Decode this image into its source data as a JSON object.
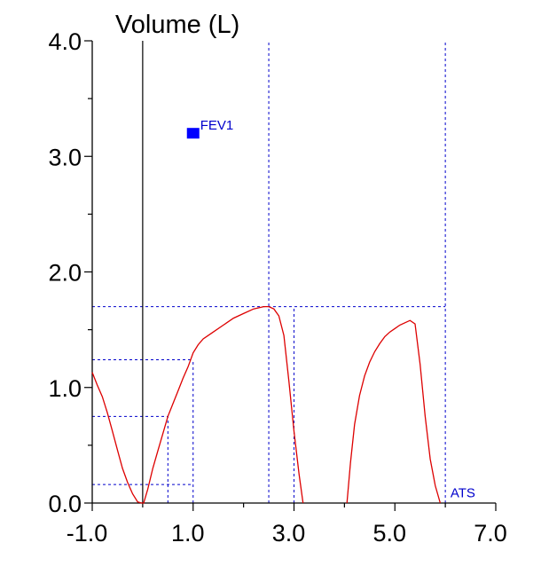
{
  "chart_data": {
    "type": "line",
    "title": "Volume (L)",
    "xlabel": "",
    "ylabel": "Volume (L)",
    "xlim": [
      -1.0,
      7.0
    ],
    "ylim": [
      0.0,
      4.0
    ],
    "x_ticks": [
      -1.0,
      1.0,
      3.0,
      5.0,
      7.0
    ],
    "x_tick_labels": [
      "-1.0",
      "1.0",
      "3.0",
      "5.0",
      "7.0"
    ],
    "x_minor_ticks": [
      0.0,
      2.0,
      4.0,
      6.0
    ],
    "y_ticks": [
      0.0,
      1.0,
      2.0,
      3.0,
      4.0
    ],
    "y_tick_labels": [
      "0.0",
      "1.0",
      "2.0",
      "3.0",
      "4.0"
    ],
    "y_minor_ticks": [
      0.5,
      1.5,
      2.5,
      3.5
    ],
    "grid": false,
    "colors": {
      "curve": "#dd0000",
      "guides": "#0000cc",
      "marker": "#0000ff",
      "axes": "#000000"
    },
    "series": [
      {
        "points": [
          [
            -1.0,
            1.13
          ],
          [
            -0.9,
            1.02
          ],
          [
            -0.8,
            0.92
          ],
          [
            -0.7,
            0.78
          ],
          [
            -0.6,
            0.62
          ],
          [
            -0.5,
            0.46
          ],
          [
            -0.4,
            0.3
          ],
          [
            -0.3,
            0.18
          ],
          [
            -0.2,
            0.08
          ],
          [
            -0.1,
            0.01
          ],
          [
            -0.02,
            0.0
          ],
          [
            0.02,
            0.0
          ],
          [
            0.1,
            0.12
          ],
          [
            0.2,
            0.3
          ],
          [
            0.3,
            0.45
          ],
          [
            0.4,
            0.6
          ],
          [
            0.5,
            0.75
          ],
          [
            0.6,
            0.86
          ],
          [
            0.7,
            0.97
          ],
          [
            0.8,
            1.08
          ],
          [
            0.9,
            1.18
          ],
          [
            1.0,
            1.3
          ],
          [
            1.1,
            1.37
          ],
          [
            1.2,
            1.42
          ],
          [
            1.4,
            1.48
          ],
          [
            1.6,
            1.54
          ],
          [
            1.8,
            1.6
          ],
          [
            2.0,
            1.64
          ],
          [
            2.2,
            1.68
          ],
          [
            2.4,
            1.7
          ],
          [
            2.5,
            1.7
          ],
          [
            2.6,
            1.68
          ],
          [
            2.7,
            1.62
          ],
          [
            2.8,
            1.45
          ],
          [
            2.9,
            1.05
          ],
          [
            3.0,
            0.62
          ],
          [
            3.1,
            0.25
          ],
          [
            3.18,
            0.0
          ]
        ]
      },
      {
        "points": [
          [
            4.05,
            0.0
          ],
          [
            4.12,
            0.35
          ],
          [
            4.2,
            0.68
          ],
          [
            4.3,
            0.93
          ],
          [
            4.4,
            1.1
          ],
          [
            4.5,
            1.22
          ],
          [
            4.6,
            1.31
          ],
          [
            4.7,
            1.38
          ],
          [
            4.8,
            1.44
          ],
          [
            4.9,
            1.48
          ],
          [
            5.0,
            1.51
          ],
          [
            5.1,
            1.54
          ],
          [
            5.2,
            1.56
          ],
          [
            5.3,
            1.58
          ],
          [
            5.4,
            1.55
          ],
          [
            5.5,
            1.2
          ],
          [
            5.6,
            0.75
          ],
          [
            5.7,
            0.38
          ],
          [
            5.8,
            0.15
          ],
          [
            5.9,
            0.0
          ]
        ]
      }
    ],
    "guide_lines": [
      {
        "x1": 2.5,
        "y1": 0.0,
        "x2": 2.5,
        "y2": 4.0
      },
      {
        "x1": 6.0,
        "y1": 0.0,
        "x2": 6.0,
        "y2": 4.0
      },
      {
        "x1": -1.0,
        "y1": 1.7,
        "x2": 6.0,
        "y2": 1.7
      },
      {
        "x1": 3.0,
        "y1": 0.0,
        "x2": 3.0,
        "y2": 1.7
      },
      {
        "x1": -1.0,
        "y1": 1.24,
        "x2": 1.0,
        "y2": 1.24
      },
      {
        "x1": 1.0,
        "y1": 0.0,
        "x2": 1.0,
        "y2": 1.24
      },
      {
        "x1": -1.0,
        "y1": 0.75,
        "x2": 0.5,
        "y2": 0.75
      },
      {
        "x1": 0.5,
        "y1": 0.0,
        "x2": 0.5,
        "y2": 0.75
      },
      {
        "x1": -1.0,
        "y1": 0.16,
        "x2": 1.0,
        "y2": 0.16
      }
    ],
    "zero_line_x": 0.0,
    "markers": [
      {
        "label": "FEV1",
        "x": 1.0,
        "y": 3.2
      }
    ],
    "annotations": [
      {
        "text": "ATS",
        "x": 6.1,
        "y": 0.05
      }
    ]
  }
}
